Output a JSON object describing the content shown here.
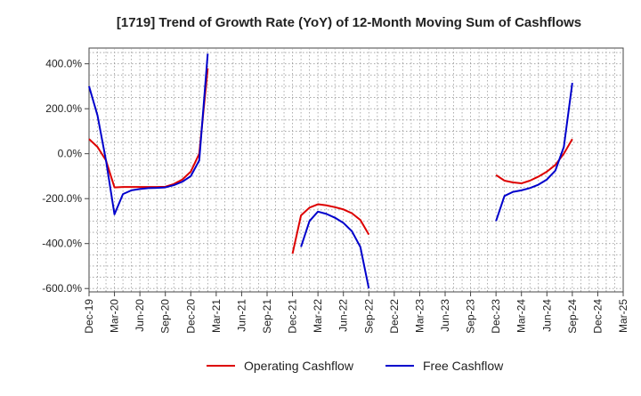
{
  "chart_data": {
    "type": "line",
    "title": "[1719]  Trend of Growth Rate (YoY) of 12-Month Moving Sum of Cashflows",
    "xlabel": "",
    "ylabel": "",
    "x_tick_labels": [
      "Dec-19",
      "Mar-20",
      "Jun-20",
      "Sep-20",
      "Dec-20",
      "Mar-21",
      "Jun-21",
      "Sep-21",
      "Dec-21",
      "Mar-22",
      "Jun-22",
      "Sep-22",
      "Dec-22",
      "Mar-23",
      "Jun-23",
      "Sep-23",
      "Dec-23",
      "Mar-24",
      "Jun-24",
      "Sep-24",
      "Dec-24",
      "Mar-25"
    ],
    "y_ticks": [
      400,
      200,
      0,
      -200,
      -400,
      -600
    ],
    "y_tick_labels": [
      "400.0%",
      "200.0%",
      "0.0%",
      "-200.0%",
      "-400.0%",
      "-600.0%"
    ],
    "ylim": [
      -615,
      470
    ],
    "xlim": [
      "Dec-19",
      "Mar-25"
    ],
    "grid": true,
    "legend_position": "bottom-center",
    "series": [
      {
        "name": "Operating Cashflow",
        "color": "#dd0000",
        "points": [
          [
            "Dec-19",
            65
          ],
          [
            "Jan-20",
            30
          ],
          [
            "Feb-20",
            -30
          ],
          [
            "Mar-20",
            -150
          ],
          [
            "Apr-20",
            -148
          ],
          [
            "May-20",
            -148
          ],
          [
            "Jun-20",
            -148
          ],
          [
            "Jul-20",
            -148
          ],
          [
            "Aug-20",
            -148
          ],
          [
            "Sep-20",
            -147
          ],
          [
            "Oct-20",
            -135
          ],
          [
            "Nov-20",
            -115
          ],
          [
            "Dec-20",
            -80
          ],
          [
            "Jan-21",
            0
          ],
          [
            "Feb-21",
            380
          ],
          [
            "Dec-21",
            -445
          ],
          [
            "Jan-22",
            -275
          ],
          [
            "Feb-22",
            -240
          ],
          [
            "Mar-22",
            -225
          ],
          [
            "Apr-22",
            -230
          ],
          [
            "May-22",
            -238
          ],
          [
            "Jun-22",
            -248
          ],
          [
            "Jul-22",
            -265
          ],
          [
            "Aug-22",
            -295
          ],
          [
            "Sep-22",
            -360
          ],
          [
            "Dec-23",
            -95
          ],
          [
            "Jan-24",
            -120
          ],
          [
            "Feb-24",
            -128
          ],
          [
            "Mar-24",
            -132
          ],
          [
            "Apr-24",
            -120
          ],
          [
            "May-24",
            -102
          ],
          [
            "Jun-24",
            -80
          ],
          [
            "Jul-24",
            -50
          ],
          [
            "Aug-24",
            0
          ],
          [
            "Sep-24",
            65
          ]
        ]
      },
      {
        "name": "Free Cashflow",
        "color": "#0000cc",
        "points": [
          [
            "Dec-19",
            300
          ],
          [
            "Jan-20",
            170
          ],
          [
            "Feb-20",
            -30
          ],
          [
            "Mar-20",
            -270
          ],
          [
            "Apr-20",
            -180
          ],
          [
            "May-20",
            -163
          ],
          [
            "Jun-20",
            -157
          ],
          [
            "Jul-20",
            -153
          ],
          [
            "Aug-20",
            -152
          ],
          [
            "Sep-20",
            -150
          ],
          [
            "Oct-20",
            -140
          ],
          [
            "Nov-20",
            -125
          ],
          [
            "Dec-20",
            -100
          ],
          [
            "Jan-21",
            -30
          ],
          [
            "Feb-21",
            445
          ],
          [
            "Jan-22",
            -415
          ],
          [
            "Feb-22",
            -300
          ],
          [
            "Mar-22",
            -258
          ],
          [
            "Apr-22",
            -268
          ],
          [
            "May-22",
            -285
          ],
          [
            "Jun-22",
            -308
          ],
          [
            "Jul-22",
            -345
          ],
          [
            "Aug-22",
            -415
          ],
          [
            "Sep-22",
            -600
          ],
          [
            "Dec-23",
            -300
          ],
          [
            "Jan-24",
            -188
          ],
          [
            "Feb-24",
            -170
          ],
          [
            "Mar-24",
            -163
          ],
          [
            "Apr-24",
            -153
          ],
          [
            "May-24",
            -138
          ],
          [
            "Jun-24",
            -115
          ],
          [
            "Jul-24",
            -75
          ],
          [
            "Aug-24",
            30
          ],
          [
            "Sep-24",
            315
          ]
        ]
      }
    ]
  }
}
